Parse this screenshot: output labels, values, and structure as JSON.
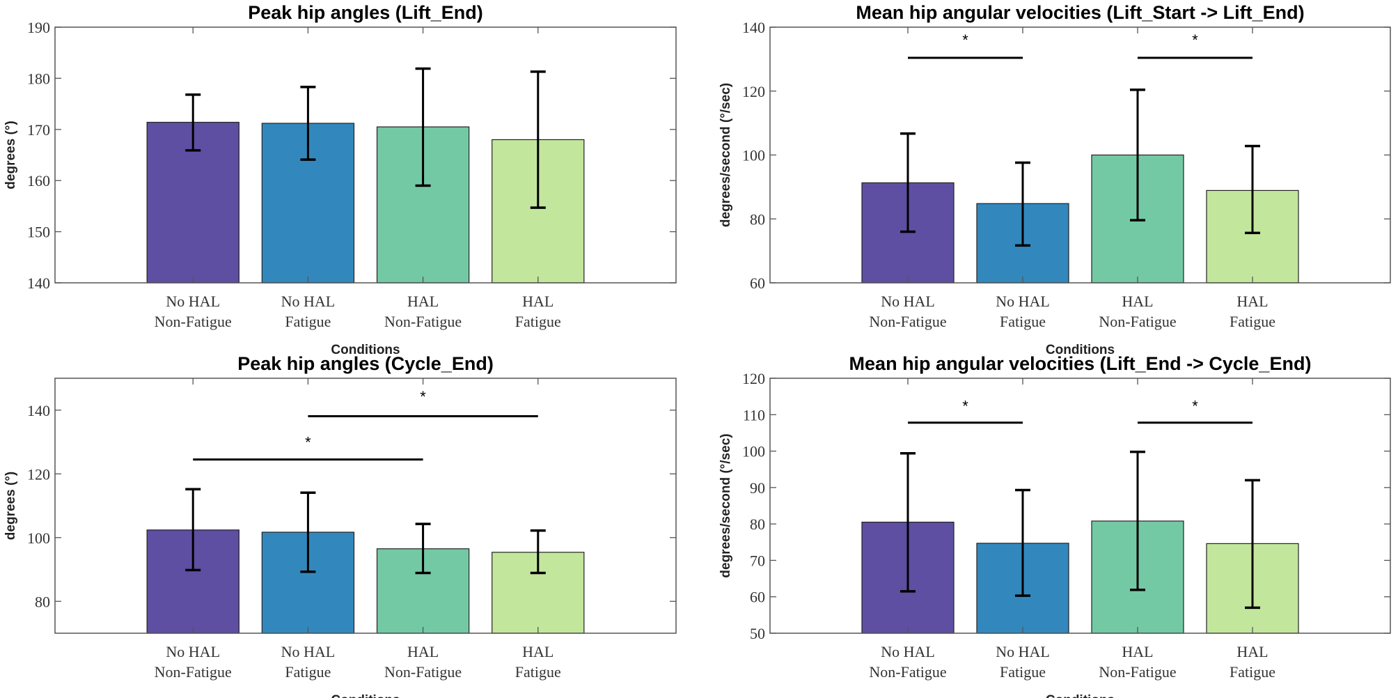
{
  "chart_data": [
    {
      "type": "bar",
      "title": "Peak hip angles (Lift_End)",
      "xlabel": "Conditions",
      "ylabel": "degrees (°)",
      "categories": [
        [
          "No HAL",
          "Non-Fatigue"
        ],
        [
          "No HAL",
          "Fatigue"
        ],
        [
          "HAL",
          "Non-Fatigue"
        ],
        [
          "HAL",
          "Fatigue"
        ]
      ],
      "values": [
        171.4,
        171.2,
        170.5,
        168.0
      ],
      "error_upper": [
        176.8,
        178.3,
        181.9,
        181.3
      ],
      "error_lower": [
        165.9,
        164.1,
        159.0,
        154.7
      ],
      "ylim": [
        140,
        190
      ],
      "yticks": [
        140,
        150,
        160,
        170,
        180,
        190
      ],
      "colors": [
        "#5e4fa2",
        "#3288bd",
        "#74c9a5",
        "#c3e69d"
      ],
      "significance": []
    },
    {
      "type": "bar",
      "title": "Mean hip angular velocities (Lift_Start -> Lift_End)",
      "xlabel": "Conditions",
      "ylabel": "degrees/second (°/sec)",
      "categories": [
        [
          "No HAL",
          "Non-Fatigue"
        ],
        [
          "No HAL",
          "Fatigue"
        ],
        [
          "HAL",
          "Non-Fatigue"
        ],
        [
          "HAL",
          "Fatigue"
        ]
      ],
      "values": [
        91.3,
        84.8,
        100.0,
        88.9
      ],
      "error_upper": [
        106.7,
        97.6,
        120.4,
        102.8
      ],
      "error_lower": [
        76.0,
        71.7,
        79.6,
        75.6
      ],
      "ylim": [
        60,
        140
      ],
      "yticks": [
        60,
        80,
        100,
        120,
        140
      ],
      "colors": [
        "#5e4fa2",
        "#3288bd",
        "#74c9a5",
        "#c3e69d"
      ],
      "significance": [
        {
          "from": 1,
          "to": 2,
          "level": 130.4,
          "star_level": 137,
          "label": "*"
        },
        {
          "from": 3,
          "to": 4,
          "level": 130.4,
          "star_level": 137,
          "label": "*"
        }
      ]
    },
    {
      "type": "bar",
      "title": "Peak hip angles (Cycle_End)",
      "xlabel": "Conditions",
      "ylabel": "degrees (°)",
      "categories": [
        [
          "No HAL",
          "Non-Fatigue"
        ],
        [
          "No HAL",
          "Fatigue"
        ],
        [
          "HAL",
          "Non-Fatigue"
        ],
        [
          "HAL",
          "Fatigue"
        ]
      ],
      "values": [
        102.4,
        101.7,
        96.5,
        95.4
      ],
      "error_upper": [
        115.2,
        114.1,
        104.3,
        102.2
      ],
      "error_lower": [
        89.8,
        89.3,
        88.9,
        88.9
      ],
      "ylim": [
        70,
        150
      ],
      "yticks": [
        80,
        100,
        120,
        140
      ],
      "colors": [
        "#5e4fa2",
        "#3288bd",
        "#74c9a5",
        "#c3e69d"
      ],
      "significance": [
        {
          "from": 1,
          "to": 3,
          "level": 124.5,
          "star_level": 130.9,
          "label": "*"
        },
        {
          "from": 2,
          "to": 4,
          "level": 138.1,
          "star_level": 145.2,
          "label": "*"
        }
      ]
    },
    {
      "type": "bar",
      "title": "Mean hip angular velocities (Lift_End -> Cycle_End)",
      "xlabel": "Conditions",
      "ylabel": "degrees/second (°/sec)",
      "categories": [
        [
          "No HAL",
          "Non-Fatigue"
        ],
        [
          "No HAL",
          "Fatigue"
        ],
        [
          "HAL",
          "Non-Fatigue"
        ],
        [
          "HAL",
          "Fatigue"
        ]
      ],
      "values": [
        80.5,
        74.7,
        80.8,
        74.6
      ],
      "error_upper": [
        99.4,
        89.3,
        99.8,
        92.0
      ],
      "error_lower": [
        61.5,
        60.3,
        61.9,
        57.0
      ],
      "ylim": [
        50,
        120
      ],
      "yticks": [
        50,
        60,
        70,
        80,
        90,
        100,
        110,
        120
      ],
      "colors": [
        "#5e4fa2",
        "#3288bd",
        "#74c9a5",
        "#c3e69d"
      ],
      "significance": [
        {
          "from": 1,
          "to": 2,
          "level": 107.8,
          "star_level": 113.2,
          "label": "*"
        },
        {
          "from": 3,
          "to": 4,
          "level": 107.8,
          "star_level": 113.2,
          "label": "*"
        }
      ]
    }
  ]
}
